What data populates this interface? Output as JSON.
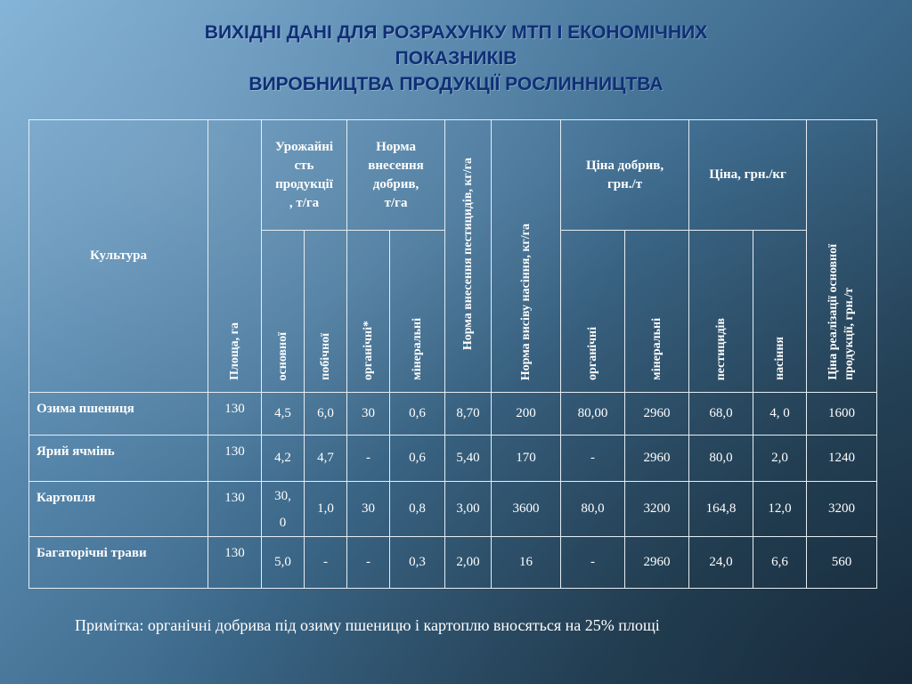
{
  "title": {
    "line1": "ВИХІДНІ ДАНІ ДЛЯ РОЗРАХУНКУ МТП І ЕКОНОМІЧНИХ",
    "line2": "ПОКАЗНИКІВ",
    "line3": "ВИРОБНИЦТВА  ПРОДУКЦІЇ  РОСЛИННИЦТВА"
  },
  "table": {
    "headers": {
      "culture": "Культура",
      "area": "Площа,  га",
      "yield": "Урожайність продукції, т/га",
      "yield_main": "основної",
      "yield_side": "побічної",
      "fert_rate": "Норма внесення добрив, т/га",
      "fert_org": "органічні*",
      "fert_min": "мінеральні",
      "pest_rate": "Норма внесення пестицидів, кг/га",
      "seed_rate": "Норма висіву насіння, кг/га",
      "fert_price": "Ціна добрив, грн./т",
      "fp_org": "органічні",
      "fp_min": "мінеральні",
      "price": "Ціна, грн./кг",
      "price_pest": "пестицидів",
      "price_seed": "насіння",
      "sale_price_line1": "Ціна реалізації основної",
      "sale_price_line2": "продукції, грн./т"
    },
    "rows": [
      {
        "culture": "Озима пшениця",
        "area": "130",
        "yield_main": "4,5",
        "yield_side": "6,0",
        "fert_org": "30",
        "fert_min": "0,6",
        "pest": "8,70",
        "seed": "200",
        "fp_org": "80,00",
        "fp_min": "2960",
        "price_pest": "68,0",
        "price_seed": "4, 0",
        "sale": "1600"
      },
      {
        "culture": "Ярий ячмінь",
        "area": "130",
        "yield_main": "4,2",
        "yield_side": "4,7",
        "fert_org": "-",
        "fert_min": "0,6",
        "pest": "5,40",
        "seed": "170",
        "fp_org": "-",
        "fp_min": "2960",
        "price_pest": "80,0",
        "price_seed": "2,0",
        "sale": "1240"
      },
      {
        "culture": "Картопля",
        "area": "130",
        "yield_main_l1": "30,",
        "yield_main_l2": "0",
        "yield_side": "1,0",
        "fert_org": "30",
        "fert_min": "0,8",
        "pest": "3,00",
        "seed": "3600",
        "fp_org": "80,0",
        "fp_min": "3200",
        "price_pest": "164,8",
        "price_seed": "12,0",
        "sale": "3200"
      },
      {
        "culture": "Багаторічні трави",
        "area": "130",
        "yield_main": "5,0",
        "yield_side": "-",
        "fert_org": "-",
        "fert_min": "0,3",
        "pest": "2,00",
        "seed": "16",
        "fp_org": "-",
        "fp_min": "2960",
        "price_pest": "24,0",
        "price_seed": "6,6",
        "sale": "560"
      }
    ]
  },
  "note": "Примітка: органічні добрива під озиму пшеницю і картоплю вносяться на 25% площі"
}
